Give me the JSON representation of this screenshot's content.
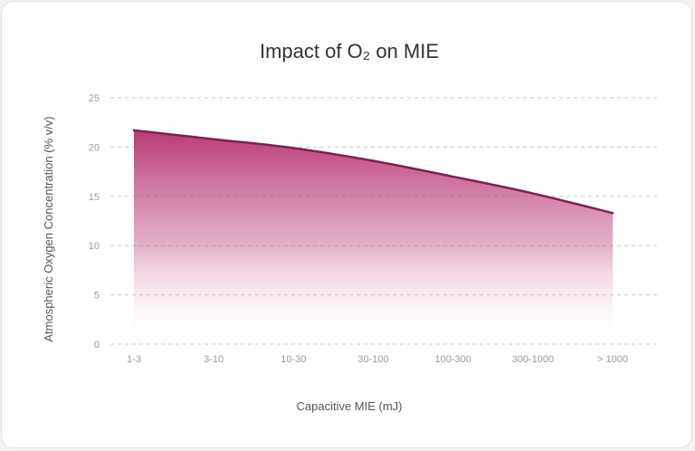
{
  "chart_data": {
    "type": "area",
    "title": "Impact of O₂ on MIE",
    "xlabel": "Capacitive MIE (mJ)",
    "ylabel": "Atmospheric Oxygen Concentration (% v/v)",
    "categories": [
      "1-3",
      "3-10",
      "10-30",
      "30-100",
      "100-300",
      "300-1000",
      "> 1000"
    ],
    "values": [
      21.7,
      20.8,
      19.9,
      18.6,
      17.0,
      15.3,
      13.3
    ],
    "ylim": [
      0,
      25
    ],
    "yticks": [
      0,
      5,
      10,
      15,
      20,
      25
    ],
    "grid": true,
    "legend": "none",
    "colors": {
      "line": "#8b1a53",
      "fill": "#b5306e",
      "grid": "#c9c9c9",
      "text": "#333333",
      "tick": "#9a9a9a"
    }
  }
}
